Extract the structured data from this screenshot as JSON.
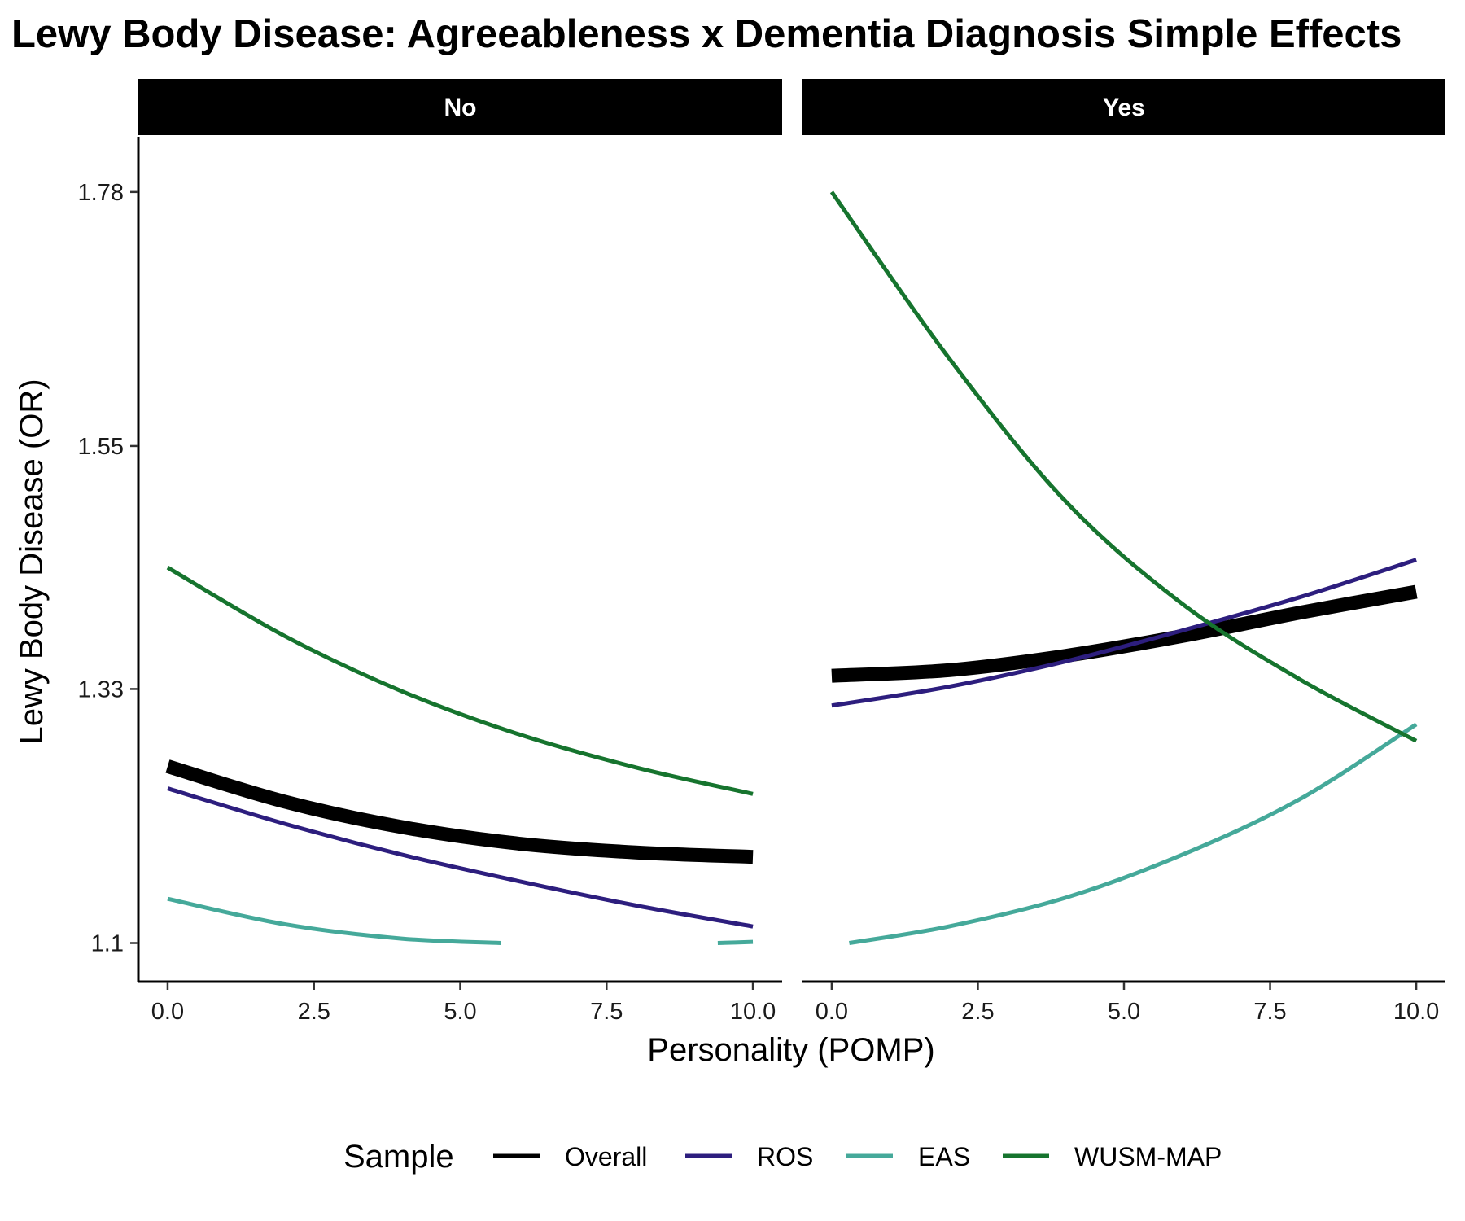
{
  "chart_data": {
    "type": "line",
    "title": "Lewy Body Disease: Agreeableness x Dementia Diagnosis Simple Effects",
    "xlabel": "Personality (POMP)",
    "ylabel": "Lewy Body Disease (OR)",
    "xlim": [
      -0.5,
      10.5
    ],
    "ylim": [
      1.065,
      1.83
    ],
    "x_ticks": [
      0,
      2.5,
      5,
      7.5,
      10
    ],
    "x_tick_labels": [
      "0.0",
      "2.5",
      "5.0",
      "7.5",
      "10.0"
    ],
    "y_ticks": [
      1.1,
      1.33,
      1.55,
      1.78
    ],
    "y_tick_labels": [
      "1.1",
      "1.33",
      "1.55",
      "1.78"
    ],
    "legend": {
      "title": "Sample",
      "position": "bottom"
    },
    "panels": [
      {
        "label": "No",
        "series": [
          {
            "name": "Overall",
            "color": "#000000",
            "weight": "thick",
            "segments": [
              {
                "x": [
                  0,
                  2,
                  4,
                  6,
                  8,
                  10
                ],
                "y": [
                  1.26,
                  1.228,
                  1.205,
                  1.19,
                  1.182,
                  1.178
                ]
              }
            ]
          },
          {
            "name": "ROS",
            "color": "#2d1e7e",
            "weight": "normal",
            "segments": [
              {
                "x": [
                  0,
                  2,
                  4,
                  6,
                  8,
                  10
                ],
                "y": [
                  1.24,
                  1.208,
                  1.18,
                  1.156,
                  1.134,
                  1.115
                ]
              }
            ]
          },
          {
            "name": "EAS",
            "color": "#45a99a",
            "weight": "normal",
            "segments": [
              {
                "x": [
                  0,
                  2,
                  4,
                  5.7
                ],
                "y": [
                  1.14,
                  1.117,
                  1.104,
                  1.1
                ]
              },
              {
                "x": [
                  9.4,
                  10
                ],
                "y": [
                  1.1,
                  1.101
                ]
              }
            ]
          },
          {
            "name": "WUSM-MAP",
            "color": "#16742e",
            "weight": "normal",
            "segments": [
              {
                "x": [
                  0,
                  2,
                  4,
                  6,
                  8,
                  10
                ],
                "y": [
                  1.44,
                  1.378,
                  1.328,
                  1.289,
                  1.259,
                  1.235
                ]
              }
            ]
          }
        ]
      },
      {
        "label": "Yes",
        "series": [
          {
            "name": "Overall",
            "color": "#000000",
            "weight": "thick",
            "segments": [
              {
                "x": [
                  0,
                  2,
                  4,
                  6,
                  8,
                  10
                ],
                "y": [
                  1.342,
                  1.347,
                  1.36,
                  1.378,
                  1.399,
                  1.418
                ]
              }
            ]
          },
          {
            "name": "ROS",
            "color": "#2d1e7e",
            "weight": "normal",
            "segments": [
              {
                "x": [
                  0,
                  2,
                  4,
                  6,
                  8,
                  10
                ],
                "y": [
                  1.315,
                  1.332,
                  1.355,
                  1.383,
                  1.413,
                  1.447
                ]
              }
            ]
          },
          {
            "name": "EAS",
            "color": "#45a99a",
            "weight": "normal",
            "segments": [
              {
                "x": [
                  0.3,
                  2,
                  4,
                  6,
                  8,
                  10
                ],
                "y": [
                  1.1,
                  1.115,
                  1.141,
                  1.18,
                  1.23,
                  1.298
                ]
              }
            ]
          },
          {
            "name": "WUSM-MAP",
            "color": "#16742e",
            "weight": "normal",
            "segments": [
              {
                "x": [
                  0,
                  2,
                  4,
                  6,
                  8,
                  10
                ],
                "y": [
                  1.78,
                  1.63,
                  1.5,
                  1.407,
                  1.339,
                  1.283
                ]
              }
            ]
          }
        ]
      }
    ]
  }
}
